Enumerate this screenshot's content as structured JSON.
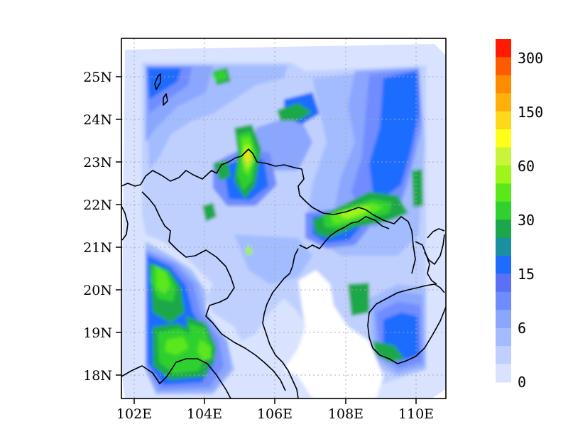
{
  "map": {
    "x_ticks": [
      "102E",
      "104E",
      "106E",
      "108E",
      "110E"
    ],
    "y_ticks": [
      "25N",
      "24N",
      "23N",
      "22N",
      "21N",
      "20N",
      "19N",
      "18N"
    ]
  },
  "colorbar": {
    "labels": [
      "300",
      "150",
      "60",
      "30",
      "15",
      "6",
      "0"
    ],
    "colors": [
      "#d9e3ff",
      "#bfd0ff",
      "#a3bcff",
      "#8aa6ff",
      "#6f8cff",
      "#5a71f5",
      "#1e6cff",
      "#1a8fa0",
      "#1aa84a",
      "#2fd02f",
      "#5ae81a",
      "#9df51a",
      "#c8f53a",
      "#ffff1a",
      "#ffd81a",
      "#ffb00a",
      "#ff8c00",
      "#ff5a00",
      "#ff1a00"
    ]
  },
  "field_colors": {
    "white": "#ffffff",
    "level1": "#d9e3ff",
    "level2": "#bfd0ff",
    "level3": "#a3bcff",
    "level4": "#8aa6ff",
    "level5": "#6f8cff",
    "level6": "#1e6cff",
    "level7": "#1aa84a",
    "level8": "#2fd02f",
    "level9": "#5ae81a",
    "level10": "#9df51a",
    "level11": "#ffd81a"
  }
}
